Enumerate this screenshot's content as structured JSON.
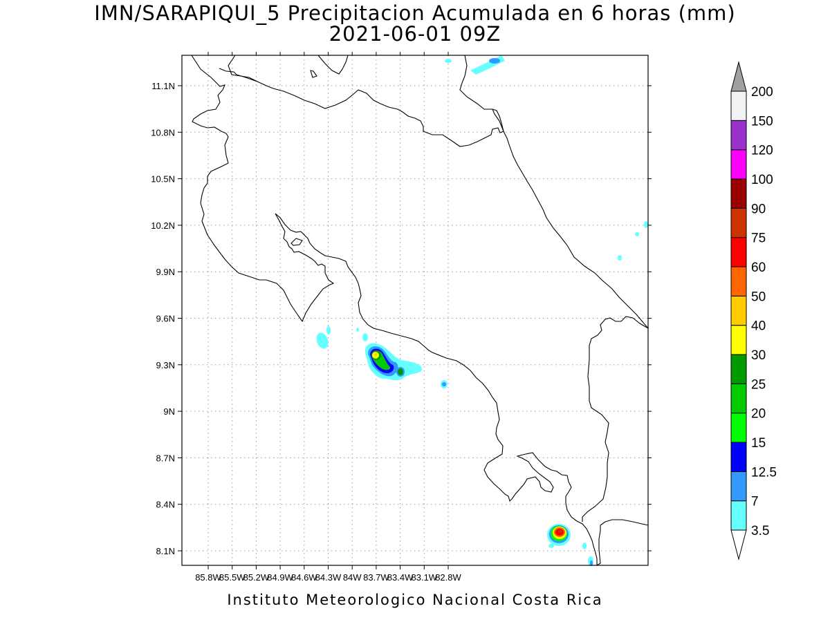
{
  "title_line1": "IMN/SARAPIQUI_5 Precipitacion Acumulada en 6 horas (mm)",
  "title_line2": "2021-06-01 09Z",
  "footer": "Instituto Meteorologico Nacional Costa Rica",
  "map": {
    "lon_labels": [
      "85.8W",
      "85.5W",
      "85.2W",
      "84.9W",
      "84.6W",
      "84.3W",
      "84W",
      "83.7W",
      "83.4W",
      "83.1W",
      "82.8W"
    ],
    "lat_labels": [
      "11.1N",
      "10.8N",
      "10.5N",
      "10.2N",
      "9.9N",
      "9.6N",
      "9.3N",
      "9N",
      "8.7N",
      "8.4N",
      "8.1N"
    ]
  },
  "colorbar": {
    "levels": [
      "3.5",
      "7",
      "12.5",
      "15",
      "20",
      "25",
      "30",
      "40",
      "50",
      "60",
      "75",
      "90",
      "100",
      "120",
      "150",
      "200"
    ],
    "colors": [
      "#66ffff",
      "#3399ff",
      "#0000ff",
      "#00ff00",
      "#00cc00",
      "#009900",
      "#ffff00",
      "#ffcc00",
      "#ff6600",
      "#ff0000",
      "#cc3300",
      "#990000",
      "#ff00ff",
      "#9933cc",
      "#f2f2f2"
    ],
    "under_color": "#ffffff",
    "over_color": "#a0a0a0"
  }
}
